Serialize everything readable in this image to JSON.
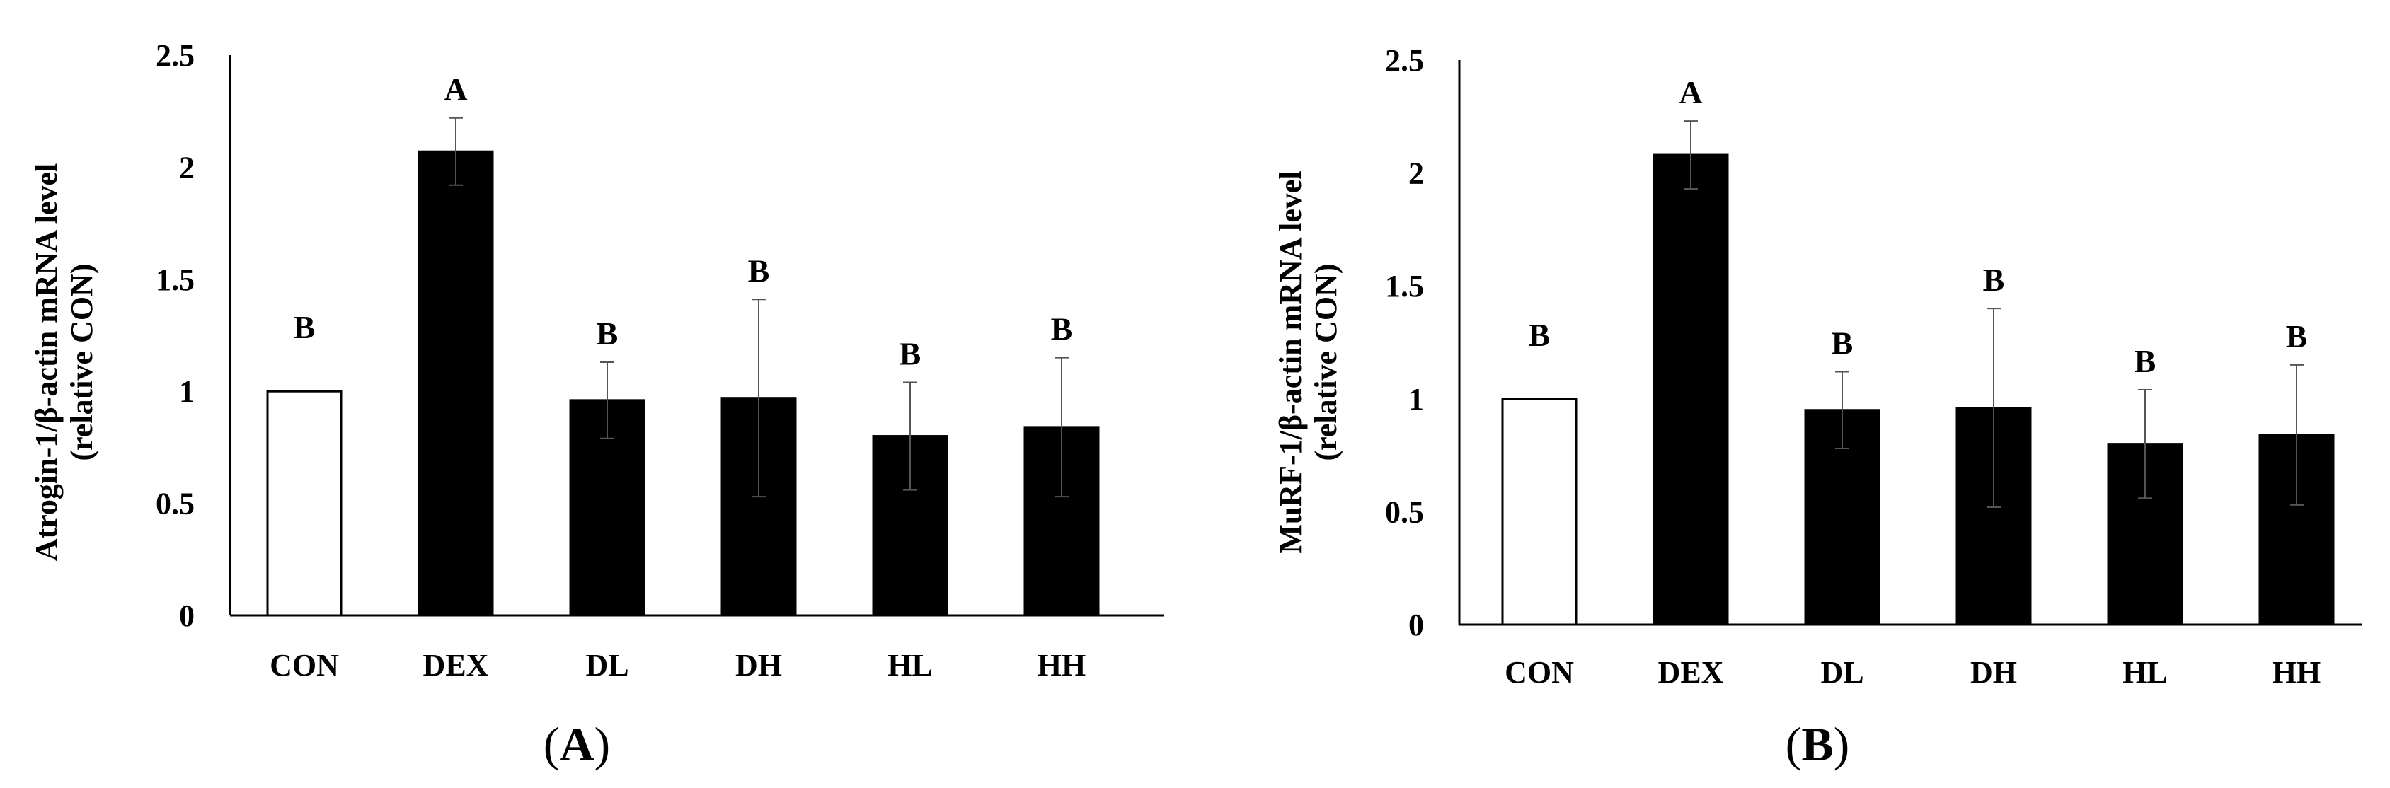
{
  "chart_data": [
    {
      "type": "bar",
      "panel_label": "A",
      "ylabel_line1": "Atrogin-1/β-actin mRNA level",
      "ylabel_line2": "(relative CON)",
      "categories": [
        "CON",
        "DEX",
        "DL",
        "DH",
        "HL",
        "HH"
      ],
      "values": [
        1.0,
        2.07,
        0.96,
        0.97,
        0.8,
        0.84
      ],
      "errors": [
        0.0,
        0.15,
        0.17,
        0.44,
        0.24,
        0.31
      ],
      "significance": [
        "B",
        "A",
        "B",
        "B",
        "B",
        "B"
      ],
      "fills": [
        "#ffffff",
        "#000000",
        "#000000",
        "#000000",
        "#000000",
        "#000000"
      ],
      "ylim": [
        0,
        2.5
      ],
      "yticks": [
        "0",
        "0.5",
        "1",
        "1.5",
        "2",
        "2.5"
      ],
      "ytick_values": [
        0,
        0.5,
        1,
        1.5,
        2,
        2.5
      ],
      "grid": false
    },
    {
      "type": "bar",
      "panel_label": "B",
      "ylabel_line1": "MuRF-1/β-actin mRNA level",
      "ylabel_line2": "(relative CON)",
      "categories": [
        "CON",
        "DEX",
        "DL",
        "DH",
        "HL",
        "HH"
      ],
      "values": [
        1.0,
        2.08,
        0.95,
        0.96,
        0.8,
        0.84
      ],
      "errors": [
        0.0,
        0.15,
        0.17,
        0.44,
        0.24,
        0.31
      ],
      "significance": [
        "B",
        "A",
        "B",
        "B",
        "B",
        "B"
      ],
      "fills": [
        "#ffffff",
        "#000000",
        "#000000",
        "#000000",
        "#000000",
        "#000000"
      ],
      "ylim": [
        0,
        2.5
      ],
      "yticks": [
        "0",
        "0.5",
        "1",
        "1.5",
        "2",
        "2.5"
      ],
      "ytick_values": [
        0,
        0.5,
        1,
        1.5,
        2,
        2.5
      ],
      "grid": false
    }
  ]
}
